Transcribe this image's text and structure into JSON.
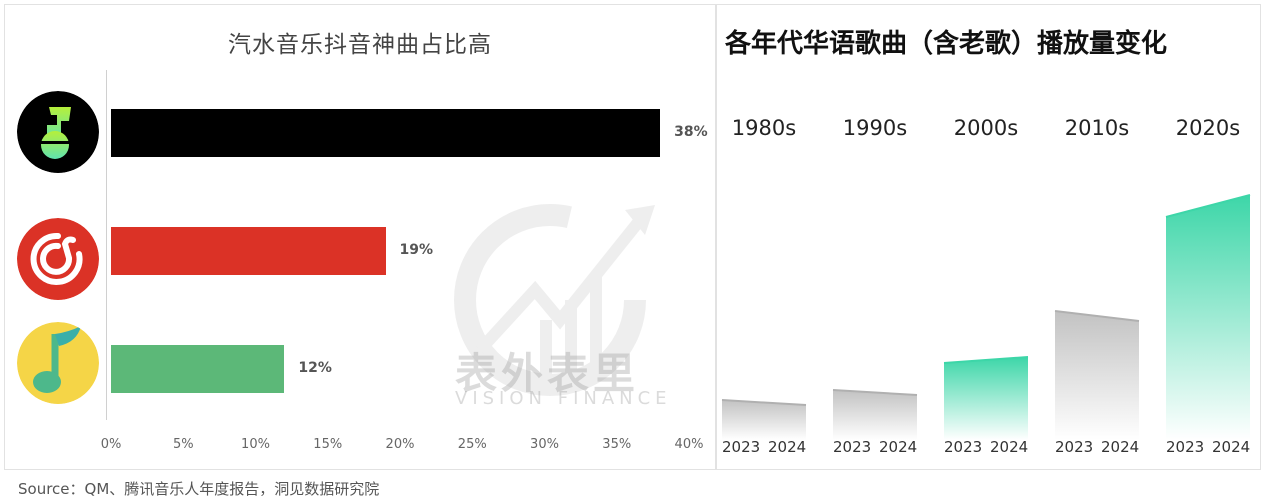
{
  "left_chart": {
    "title": "汽水音乐抖音神曲占比高",
    "bars": [
      {
        "app": "Qishui Music",
        "icon": "qishui-music-logo-icon",
        "value": 38,
        "label": "38%",
        "color": "#000000"
      },
      {
        "app": "NetEase Cloud Music",
        "icon": "netease-music-logo-icon",
        "value": 19,
        "label": "19%",
        "color": "#DB3226"
      },
      {
        "app": "QQ Music",
        "icon": "qq-music-logo-icon",
        "value": 12,
        "label": "12%",
        "color": "#5CB878"
      }
    ],
    "ticks": [
      "0%",
      "5%",
      "10%",
      "15%",
      "20%",
      "25%",
      "30%",
      "35%",
      "40%"
    ]
  },
  "right_chart": {
    "title": "各年代华语歌曲（含老歌）播放量变化",
    "decades": [
      {
        "label": "1980s",
        "y2023": "2023",
        "y2024": "2024",
        "color": "gray"
      },
      {
        "label": "1990s",
        "y2023": "2023",
        "y2024": "2024",
        "color": "gray"
      },
      {
        "label": "2000s",
        "y2023": "2023",
        "y2024": "2024",
        "color": "green"
      },
      {
        "label": "2010s",
        "y2023": "2023",
        "y2024": "2024",
        "color": "gray"
      },
      {
        "label": "2020s",
        "y2023": "2023",
        "y2024": "2024",
        "color": "green"
      }
    ]
  },
  "watermark": {
    "cn": "表外表里",
    "en": "VISION FINANCE"
  },
  "source": "Source：QM、腾讯音乐人年度报告，洞见数据研究院",
  "chart_data": [
    {
      "type": "bar",
      "orientation": "horizontal",
      "title": "汽水音乐抖音神曲占比高",
      "categories": [
        "Qishui Music (汽水音乐)",
        "NetEase Cloud Music (网易云音乐)",
        "QQ Music (QQ音乐)"
      ],
      "values": [
        38,
        19,
        12
      ],
      "unit": "%",
      "xlim": [
        0,
        40
      ],
      "xticks": [
        "0%",
        "5%",
        "10%",
        "15%",
        "20%",
        "25%",
        "30%",
        "35%",
        "40%"
      ],
      "grid": false,
      "legend": "none (app logos as category labels)"
    },
    {
      "type": "area",
      "title": "各年代华语歌曲（含老歌）播放量变化",
      "categories": [
        "1980s",
        "1990s",
        "2000s",
        "2010s",
        "2020s"
      ],
      "x": [
        "2023",
        "2024"
      ],
      "series": [
        {
          "name": "2023 (relative height, px)",
          "values": [
            30,
            40,
            67,
            119,
            213
          ]
        },
        {
          "name": "2024 (relative height, px)",
          "values": [
            25,
            35,
            73,
            109,
            235
          ]
        }
      ],
      "note": "No y-axis; relative play volume. Green = increase (2000s, 2020s), gray = decrease (1980s, 1990s, 2010s)",
      "colors": {
        "increase": "#3DD6A8",
        "decrease": "#BDBDBD"
      }
    }
  ]
}
